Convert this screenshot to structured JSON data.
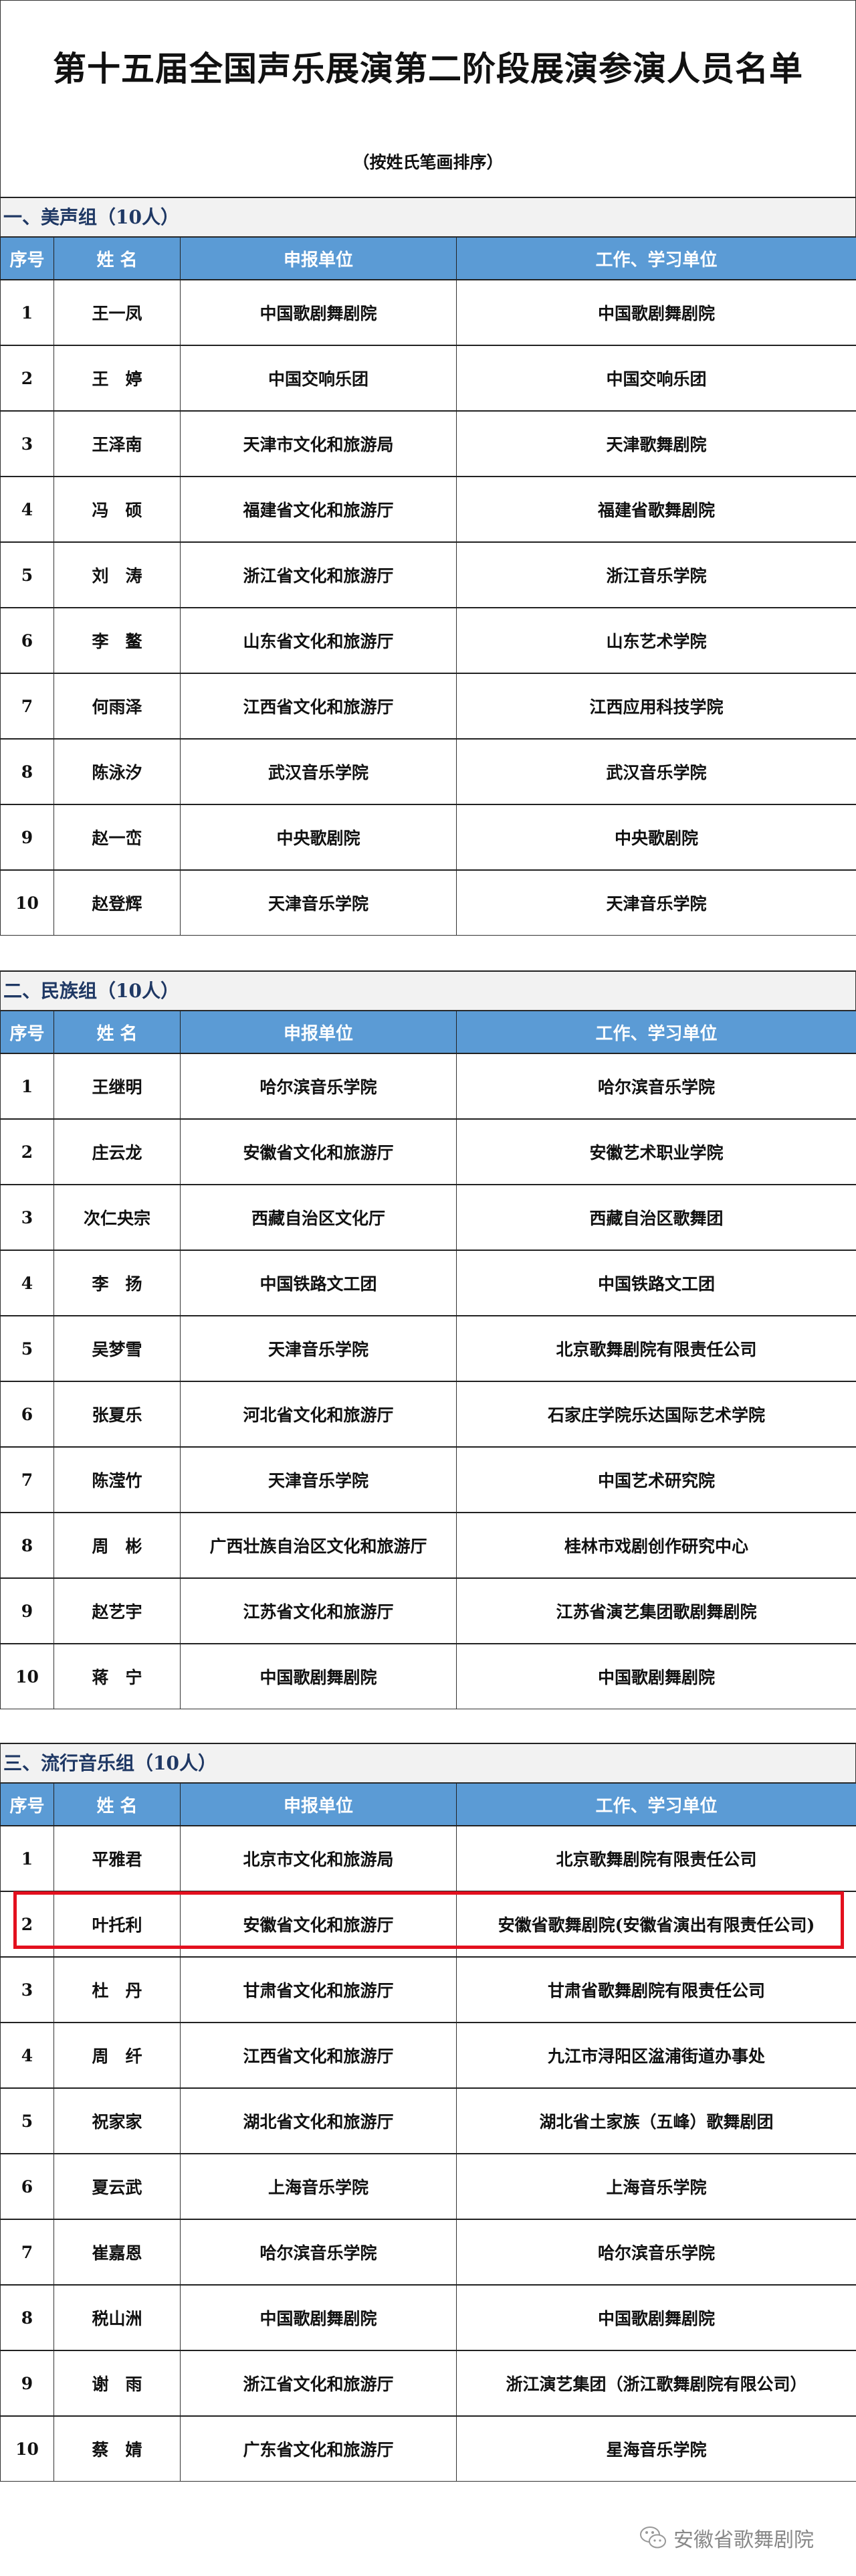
{
  "title": "第十五届全国声乐展演第二阶段展演参演人员名单",
  "subtitle": "（按姓氏笔画排序）",
  "columns": [
    "序号",
    "姓 名",
    "申报单位",
    "工作、学习单位"
  ],
  "highlight_color": "#e3101e",
  "header_color": "#5b9bd5",
  "groups": [
    {
      "label": "一、美声组（10人）",
      "rows": [
        [
          "1",
          "王一凤",
          "中国歌剧舞剧院",
          "中国歌剧舞剧院"
        ],
        [
          "2",
          "王　婷",
          "中国交响乐团",
          "中国交响乐团"
        ],
        [
          "3",
          "王泽南",
          "天津市文化和旅游局",
          "天津歌舞剧院"
        ],
        [
          "4",
          "冯　硕",
          "福建省文化和旅游厅",
          "福建省歌舞剧院"
        ],
        [
          "5",
          "刘　涛",
          "浙江省文化和旅游厅",
          "浙江音乐学院"
        ],
        [
          "6",
          "李　鳌",
          "山东省文化和旅游厅",
          "山东艺术学院"
        ],
        [
          "7",
          "何雨泽",
          "江西省文化和旅游厅",
          "江西应用科技学院"
        ],
        [
          "8",
          "陈泳汐",
          "武汉音乐学院",
          "武汉音乐学院"
        ],
        [
          "9",
          "赵一峦",
          "中央歌剧院",
          "中央歌剧院"
        ],
        [
          "10",
          "赵登辉",
          "天津音乐学院",
          "天津音乐学院"
        ]
      ]
    },
    {
      "label": "二、民族组（10人）",
      "rows": [
        [
          "1",
          "王继明",
          "哈尔滨音乐学院",
          "哈尔滨音乐学院"
        ],
        [
          "2",
          "庄云龙",
          "安徽省文化和旅游厅",
          "安徽艺术职业学院"
        ],
        [
          "3",
          "次仁央宗",
          "西藏自治区文化厅",
          "西藏自治区歌舞团"
        ],
        [
          "4",
          "李　扬",
          "中国铁路文工团",
          "中国铁路文工团"
        ],
        [
          "5",
          "吴梦雪",
          "天津音乐学院",
          "北京歌舞剧院有限责任公司"
        ],
        [
          "6",
          "张夏乐",
          "河北省文化和旅游厅",
          "石家庄学院乐达国际艺术学院"
        ],
        [
          "7",
          "陈滢竹",
          "天津音乐学院",
          "中国艺术研究院"
        ],
        [
          "8",
          "周　彬",
          "广西壮族自治区文化和旅游厅",
          "桂林市戏剧创作研究中心"
        ],
        [
          "9",
          "赵艺宇",
          "江苏省文化和旅游厅",
          "江苏省演艺集团歌剧舞剧院"
        ],
        [
          "10",
          "蒋　宁",
          "中国歌剧舞剧院",
          "中国歌剧舞剧院"
        ]
      ]
    },
    {
      "label": "三、流行音乐组（10人）",
      "rows": [
        [
          "1",
          "平雅君",
          "北京市文化和旅游局",
          "北京歌舞剧院有限责任公司"
        ],
        [
          "2",
          "叶托利",
          "安徽省文化和旅游厅",
          "安徽省歌舞剧院(安徽省演出有限责任公司)"
        ],
        [
          "3",
          "杜　丹",
          "甘肃省文化和旅游厅",
          "甘肃省歌舞剧院有限责任公司"
        ],
        [
          "4",
          "周　纤",
          "江西省文化和旅游厅",
          "九江市浔阳区湓浦街道办事处"
        ],
        [
          "5",
          "祝家家",
          "湖北省文化和旅游厅",
          "湖北省土家族（五峰）歌舞剧团"
        ],
        [
          "6",
          "夏云武",
          "上海音乐学院",
          "上海音乐学院"
        ],
        [
          "7",
          "崔嘉恩",
          "哈尔滨音乐学院",
          "哈尔滨音乐学院"
        ],
        [
          "8",
          "税山洲",
          "中国歌剧舞剧院",
          "中国歌剧舞剧院"
        ],
        [
          "9",
          "谢　雨",
          "浙江省文化和旅游厅",
          "浙江演艺集团（浙江歌舞剧院有限公司）"
        ],
        [
          "10",
          "蔡　婧",
          "广东省文化和旅游厅",
          "星海音乐学院"
        ]
      ]
    }
  ],
  "watermark": {
    "icon": "wechat-icon",
    "text": "安徽省歌舞剧院"
  }
}
